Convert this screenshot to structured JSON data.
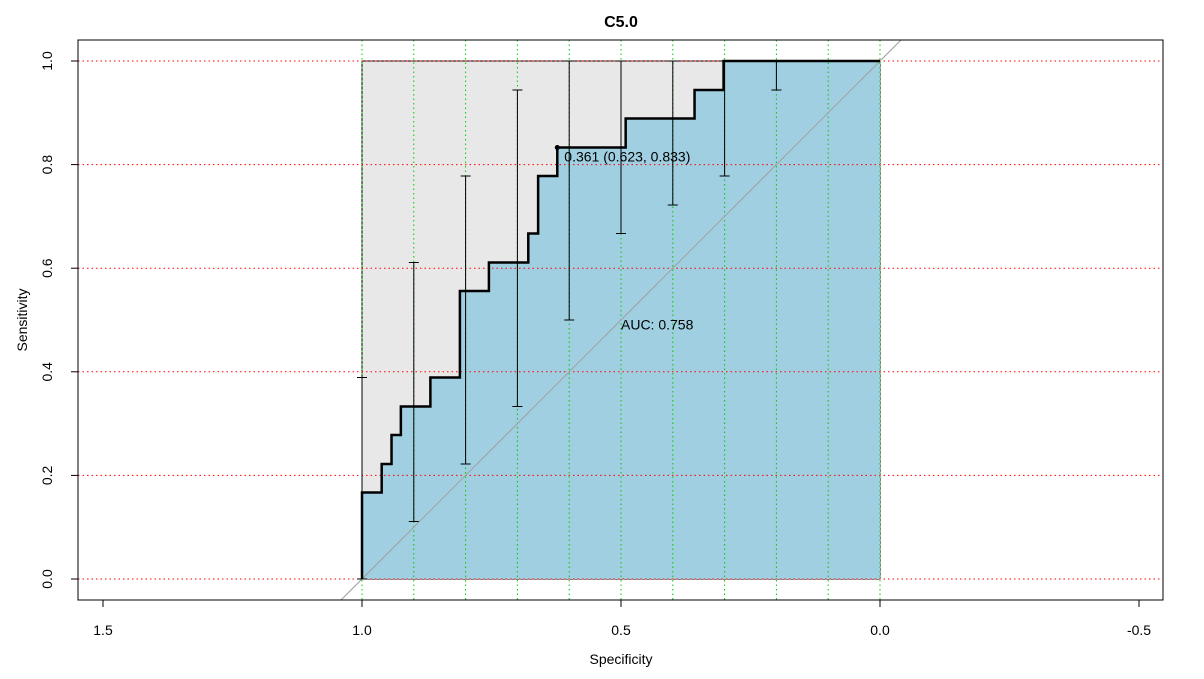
{
  "chart_data": {
    "type": "line",
    "title": "C5.0",
    "xlabel": "Specificity",
    "ylabel": "Sensitivity",
    "xlim": [
      1.5,
      -0.5
    ],
    "ylim": [
      0.0,
      1.0
    ],
    "x_reversed": true,
    "x_ticks": [
      1.5,
      1.0,
      0.5,
      0.0,
      -0.5
    ],
    "x_tick_labels": [
      "1.5",
      "1.0",
      "0.5",
      "0.0",
      "-0.5"
    ],
    "y_ticks": [
      0.0,
      0.2,
      0.4,
      0.6,
      0.8,
      1.0
    ],
    "y_tick_labels": [
      "0.0",
      "0.2",
      "0.4",
      "0.6",
      "0.8",
      "1.0"
    ],
    "grid": {
      "horizontal": [
        0.0,
        0.2,
        0.4,
        0.6,
        0.8,
        1.0
      ],
      "horizontal_color": "#ff0000",
      "vertical": [
        1.0,
        0.9,
        0.8,
        0.7,
        0.6,
        0.5,
        0.4,
        0.3,
        0.2,
        0.1,
        0.0
      ],
      "vertical_color": "#00cc00"
    },
    "roc_curve": {
      "name": "ROC",
      "color": "#000000",
      "points": [
        [
          1.0,
          0.0
        ],
        [
          1.0,
          0.167
        ],
        [
          0.962,
          0.167
        ],
        [
          0.962,
          0.222
        ],
        [
          0.943,
          0.222
        ],
        [
          0.943,
          0.278
        ],
        [
          0.925,
          0.278
        ],
        [
          0.925,
          0.333
        ],
        [
          0.868,
          0.333
        ],
        [
          0.868,
          0.389
        ],
        [
          0.811,
          0.389
        ],
        [
          0.811,
          0.556
        ],
        [
          0.755,
          0.556
        ],
        [
          0.755,
          0.611
        ],
        [
          0.679,
          0.611
        ],
        [
          0.679,
          0.667
        ],
        [
          0.66,
          0.667
        ],
        [
          0.66,
          0.778
        ],
        [
          0.623,
          0.778
        ],
        [
          0.623,
          0.833
        ],
        [
          0.491,
          0.833
        ],
        [
          0.491,
          0.889
        ],
        [
          0.358,
          0.889
        ],
        [
          0.358,
          0.944
        ],
        [
          0.302,
          0.944
        ],
        [
          0.302,
          1.0
        ],
        [
          0.0,
          1.0
        ]
      ]
    },
    "auc_fill_color": "#9fcfe0",
    "ci_region_color": "#e8e8e8",
    "diagonal": {
      "from": [
        1.0,
        0.0
      ],
      "to": [
        0.0,
        1.0
      ],
      "color": "#a0a0a0"
    },
    "ci_bars": [
      {
        "x": 1.0,
        "low": 0.0,
        "high": 0.389
      },
      {
        "x": 0.9,
        "low": 0.111,
        "high": 0.611
      },
      {
        "x": 0.8,
        "low": 0.222,
        "high": 0.778
      },
      {
        "x": 0.7,
        "low": 0.333,
        "high": 0.944
      },
      {
        "x": 0.6,
        "low": 0.5,
        "high": 1.0
      },
      {
        "x": 0.5,
        "low": 0.667,
        "high": 1.0
      },
      {
        "x": 0.4,
        "low": 0.722,
        "high": 1.0
      },
      {
        "x": 0.3,
        "low": 0.778,
        "high": 1.0
      },
      {
        "x": 0.2,
        "low": 0.944,
        "high": 1.0
      }
    ],
    "threshold_point": {
      "x": 0.623,
      "y": 0.833,
      "label": "0.361 (0.623, 0.833)"
    },
    "auc_label": {
      "text": "AUC: 0.758",
      "x": 0.5,
      "y": 0.48
    }
  }
}
